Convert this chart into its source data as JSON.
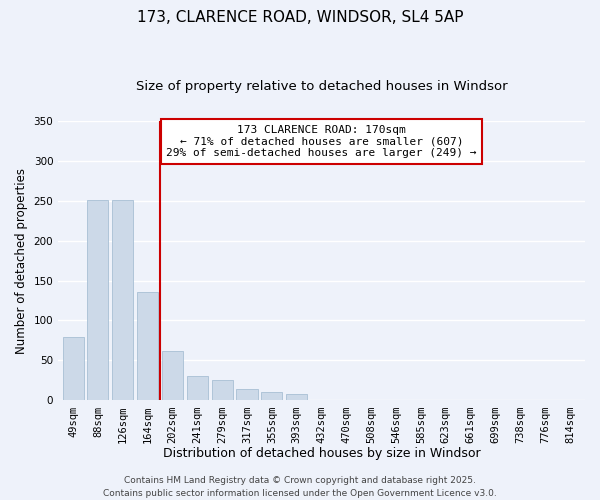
{
  "title": "173, CLARENCE ROAD, WINDSOR, SL4 5AP",
  "subtitle": "Size of property relative to detached houses in Windsor",
  "xlabel": "Distribution of detached houses by size in Windsor",
  "ylabel": "Number of detached properties",
  "categories": [
    "49sqm",
    "88sqm",
    "126sqm",
    "164sqm",
    "202sqm",
    "241sqm",
    "279sqm",
    "317sqm",
    "355sqm",
    "393sqm",
    "432sqm",
    "470sqm",
    "508sqm",
    "546sqm",
    "585sqm",
    "623sqm",
    "661sqm",
    "699sqm",
    "738sqm",
    "776sqm",
    "814sqm"
  ],
  "values": [
    79,
    251,
    251,
    136,
    62,
    31,
    26,
    14,
    11,
    8,
    1,
    0,
    0,
    0,
    0,
    0,
    0,
    0,
    0,
    0,
    0
  ],
  "bar_color": "#ccd9e8",
  "bar_edge_color": "#a8bfd4",
  "vline_color": "#cc0000",
  "vline_x": 3.5,
  "annotation_title": "173 CLARENCE ROAD: 170sqm",
  "annotation_line1": "← 71% of detached houses are smaller (607)",
  "annotation_line2": "29% of semi-detached houses are larger (249) →",
  "annotation_box_facecolor": "#ffffff",
  "annotation_box_edgecolor": "#cc0000",
  "ylim": [
    0,
    350
  ],
  "yticks": [
    0,
    50,
    100,
    150,
    200,
    250,
    300,
    350
  ],
  "footer_line1": "Contains HM Land Registry data © Crown copyright and database right 2025.",
  "footer_line2": "Contains public sector information licensed under the Open Government Licence v3.0.",
  "background_color": "#eef2fa",
  "grid_color": "#ffffff",
  "title_fontsize": 11,
  "subtitle_fontsize": 9.5,
  "ylabel_fontsize": 8.5,
  "xlabel_fontsize": 9,
  "tick_fontsize": 7.5,
  "annotation_fontsize": 8,
  "footer_fontsize": 6.5
}
